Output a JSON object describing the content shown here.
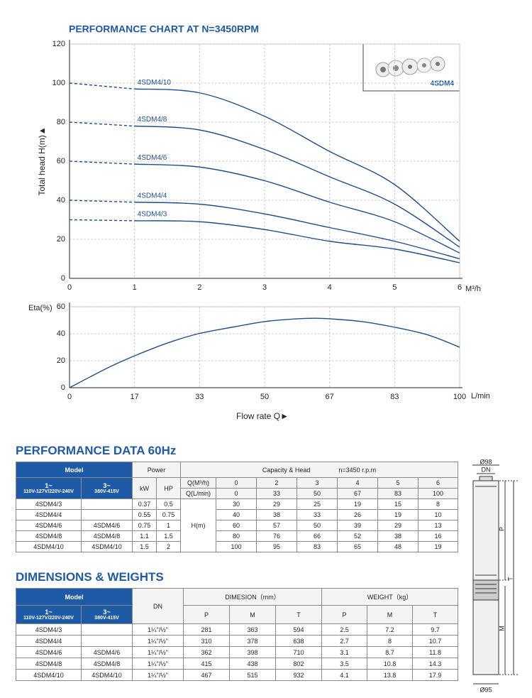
{
  "chart_data": [
    {
      "type": "line",
      "title": "PERFORMANCE CHART AT N=3450RPM",
      "y_label": "Total head H(m)▲",
      "x_unit": "M³/h",
      "x": [
        0,
        1,
        2,
        3,
        4,
        5,
        6
      ],
      "xlim": [
        0,
        6
      ],
      "xticks": [
        0,
        1,
        2,
        3,
        4,
        5,
        6
      ],
      "ylim": [
        0,
        120
      ],
      "yticks": [
        0,
        20,
        40,
        60,
        80,
        100,
        120
      ],
      "grid": true,
      "series": [
        {
          "name": "4SDM4/10",
          "color": "#1d4f8f",
          "values": [
            100,
            97,
            95,
            83,
            65,
            48,
            19
          ]
        },
        {
          "name": "4SDM4/8",
          "color": "#1d4f8f",
          "values": [
            80,
            78,
            76,
            66,
            52,
            38,
            16
          ]
        },
        {
          "name": "4SDM4/6",
          "color": "#1d4f8f",
          "values": [
            60,
            58.5,
            57,
            50,
            39,
            29,
            13
          ]
        },
        {
          "name": "4SDM4/4",
          "color": "#1d4f8f",
          "values": [
            40,
            39,
            38,
            33,
            26,
            19,
            10
          ]
        },
        {
          "name": "4SDM4/3",
          "color": "#1d4f8f",
          "values": [
            30,
            29.5,
            29,
            25,
            19,
            15,
            8
          ]
        }
      ]
    },
    {
      "type": "line",
      "y_label": "Eta(%)",
      "x_unit": "L/min",
      "x_label": "Flow rate Q►",
      "x": [
        0,
        10,
        17,
        25,
        33,
        42,
        50,
        58,
        63,
        67,
        75,
        83,
        92,
        100
      ],
      "values": [
        0,
        15,
        24,
        33,
        40,
        45,
        49,
        51,
        51.5,
        51,
        49,
        45,
        39,
        30
      ],
      "color": "#1d4f8f",
      "xlim": [
        0,
        100
      ],
      "xticks": [
        0,
        {
          "value": 16.67,
          "label": "17"
        },
        {
          "value": 33.33,
          "label": "33"
        },
        50,
        {
          "value": 66.67,
          "label": "67"
        },
        {
          "value": 83.33,
          "label": "83"
        },
        100
      ],
      "ylim": [
        0,
        60
      ],
      "yticks": [
        0,
        20,
        40,
        60
      ],
      "grid": true
    }
  ],
  "inset": {
    "label": "4SDM4"
  },
  "performance_data": {
    "title": "PERFORMANCE DATA 60Hz",
    "header": {
      "model": "Model",
      "single_phase": {
        "phase": "1~",
        "voltage": "110V-127V/220V-240V"
      },
      "three_phase": {
        "phase": "3~",
        "voltage": "380V-415V"
      },
      "power": "Power",
      "kw": "kW",
      "hp": "HP",
      "capacity": "Capacity & Head",
      "speed": "n=3450 r.p.m",
      "q_m3h": "Q(M³/h)",
      "q_lmin": "Q(L/min)",
      "head": "H(m)"
    },
    "flow_m3h": [
      0,
      2,
      3,
      4,
      5,
      6
    ],
    "flow_lmin": [
      0,
      33,
      50,
      67,
      83,
      100
    ],
    "rows": [
      {
        "single": "4SDM4/3",
        "three": null,
        "kw": 0.37,
        "hp": 0.5,
        "head": [
          30,
          29,
          25,
          19,
          15,
          8
        ]
      },
      {
        "single": "4SDM4/4",
        "three": null,
        "kw": 0.55,
        "hp": 0.75,
        "head": [
          40,
          38,
          33,
          26,
          19,
          10
        ]
      },
      {
        "single": "4SDM4/6",
        "three": "4SDM4/6",
        "kw": 0.75,
        "hp": 1,
        "head": [
          60,
          57,
          50,
          39,
          29,
          13
        ]
      },
      {
        "single": "4SDM4/8",
        "three": "4SDM4/8",
        "kw": 1.1,
        "hp": 1.5,
        "head": [
          80,
          76,
          66,
          52,
          38,
          16
        ]
      },
      {
        "single": "4SDM4/10",
        "three": "4SDM4/10",
        "kw": 1.5,
        "hp": 2,
        "head": [
          100,
          95,
          83,
          65,
          48,
          19
        ]
      }
    ]
  },
  "dimensions": {
    "title": "DIMENSIONS & WEIGHTS",
    "header": {
      "model": "Model",
      "single_phase": {
        "phase": "1~",
        "voltage": "110V-127V/220V-240V"
      },
      "three_phase": {
        "phase": "3~",
        "voltage": "380V-415V"
      },
      "dn": "DN",
      "dimension": "DIMESION（mm）",
      "weight": "WEIGHT（kg）",
      "dimension_cols": [
        "P",
        "M",
        "T"
      ],
      "weight_cols": [
        "P",
        "M",
        "T"
      ]
    },
    "rows": [
      {
        "single": "4SDM4/3",
        "three": null,
        "dn": "1¼\"/½\"",
        "dimensions": [
          281,
          363,
          594
        ],
        "weights": [
          2.5,
          7.2,
          9.7
        ]
      },
      {
        "single": "4SDM4/4",
        "three": null,
        "dn": "1¼\"/½\"",
        "dimensions": [
          310,
          378,
          638
        ],
        "weights": [
          2.7,
          8,
          10.7
        ]
      },
      {
        "single": "4SDM4/6",
        "three": "4SDM4/6",
        "dn": "1¼\"/½\"",
        "dimensions": [
          362,
          398,
          710
        ],
        "weights": [
          3.1,
          8.7,
          11.8
        ]
      },
      {
        "single": "4SDM4/8",
        "three": "4SDM4/8",
        "dn": "1¼\"/½\"",
        "dimensions": [
          415,
          438,
          802
        ],
        "weights": [
          3.5,
          10.8,
          14.3
        ]
      },
      {
        "single": "4SDM4/10",
        "three": "4SDM4/10",
        "dn": "1¼\"/½\"",
        "dimensions": [
          467,
          515,
          932
        ],
        "weights": [
          4.1,
          13.8,
          17.9
        ]
      }
    ]
  },
  "pump_drawing": {
    "outer_diameter": "Ø98",
    "dn": "DN",
    "p": "P",
    "t": "T",
    "m": "M",
    "motor_diameter": "Ø95"
  }
}
